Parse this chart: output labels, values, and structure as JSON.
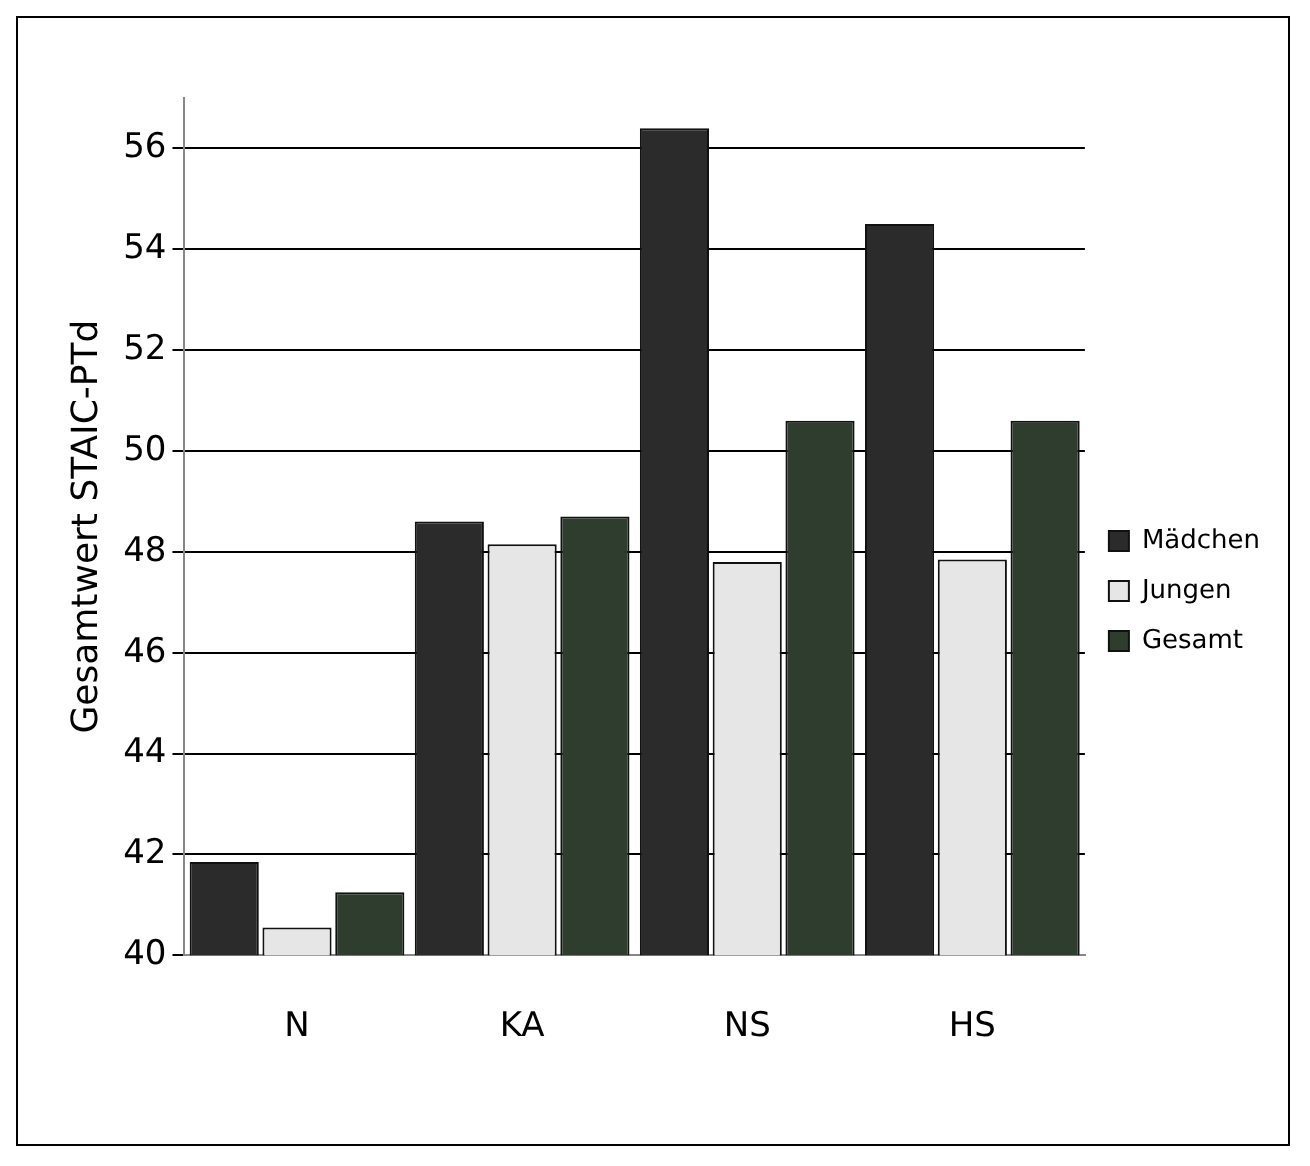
{
  "chart_data": {
    "type": "bar",
    "ylabel": "Gesamtwert STAIC-PTd",
    "categories": [
      "N",
      "KA",
      "NS",
      "HS"
    ],
    "series": [
      {
        "name": "Mädchen",
        "color": "#2b2b2b",
        "values": [
          41.85,
          48.6,
          56.4,
          54.5
        ]
      },
      {
        "name": "Jungen",
        "color": "#e6e6e6",
        "values": [
          40.55,
          48.15,
          47.8,
          47.85
        ]
      },
      {
        "name": "Gesamt",
        "color": "#2f3d2f",
        "values": [
          41.25,
          48.7,
          50.6,
          50.6
        ]
      }
    ],
    "ylim": [
      40,
      57
    ],
    "yticks": [
      40,
      42,
      44,
      46,
      48,
      50,
      52,
      54,
      56
    ],
    "grid": "y",
    "legend": "right"
  }
}
